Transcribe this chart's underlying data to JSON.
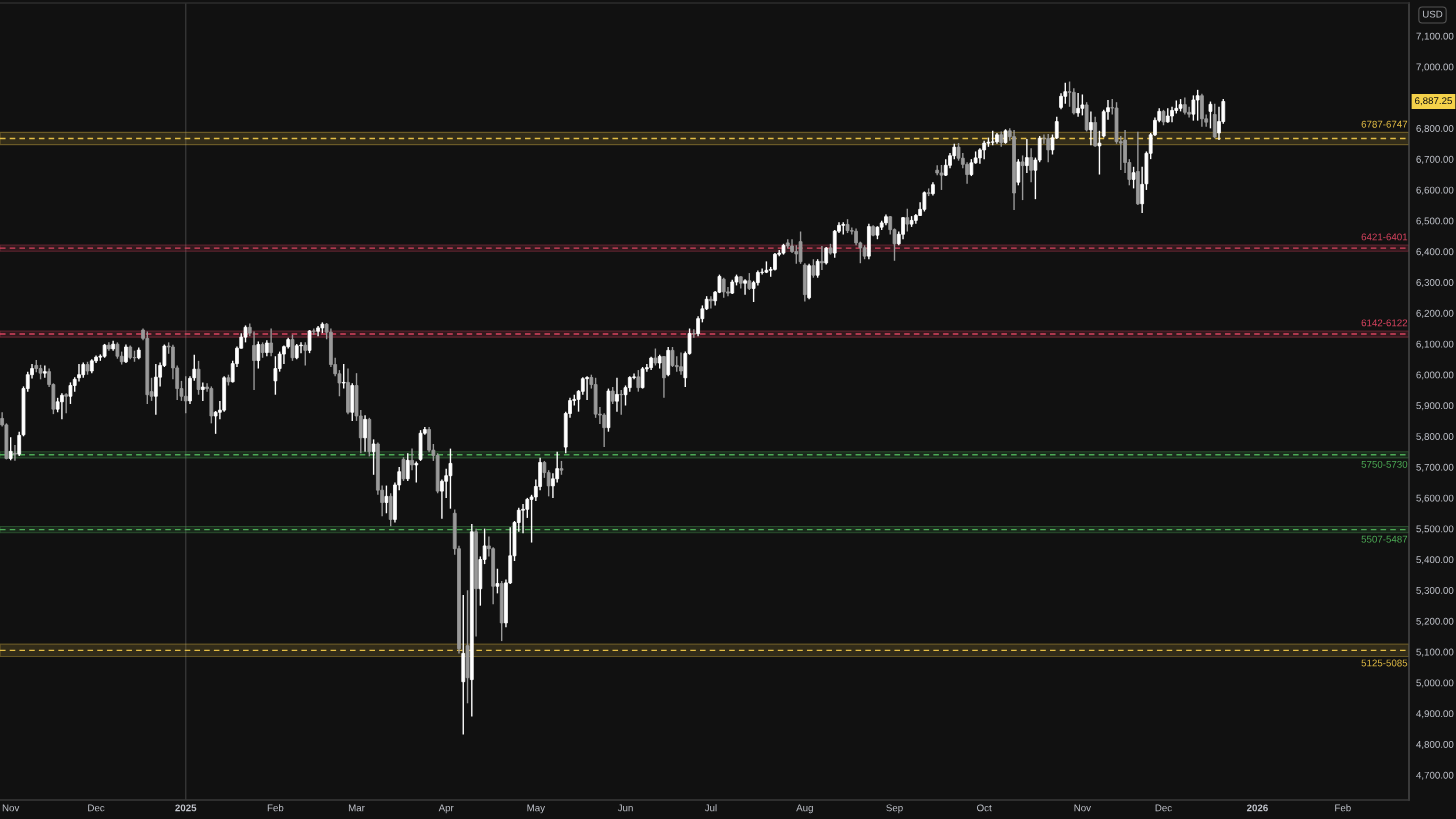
{
  "chart_data": {
    "type": "candlestick",
    "categories": [
      null,
      null,
      "Nov",
      null,
      null,
      null,
      null,
      null,
      null,
      null,
      null,
      null,
      null,
      null,
      null,
      null,
      null,
      null,
      null,
      null,
      null,
      null,
      "Dec",
      null,
      null,
      null,
      null,
      null,
      null,
      null,
      null,
      null,
      null,
      null,
      null,
      null,
      null,
      null,
      null,
      null,
      null,
      null,
      null,
      "2025",
      null,
      null,
      null,
      null,
      null,
      null,
      null,
      null,
      null,
      null,
      null,
      null,
      null,
      null,
      null,
      null,
      null,
      null,
      null,
      null,
      "Feb",
      null,
      null,
      null,
      null,
      null,
      null,
      null,
      null,
      null,
      null,
      null,
      null,
      null,
      null,
      null,
      null,
      null,
      null,
      "Mar",
      null,
      null,
      null,
      null,
      null,
      null,
      null,
      null,
      null,
      null,
      null,
      null,
      null,
      null,
      null,
      null,
      null,
      null,
      null,
      null,
      "Apr",
      null,
      null,
      null,
      null,
      null,
      null,
      null,
      null,
      null,
      null,
      null,
      null,
      null,
      null,
      null,
      null,
      null,
      null,
      null,
      null,
      "May",
      null,
      null,
      null,
      null,
      null,
      null,
      null,
      null,
      null,
      null,
      null,
      null,
      null,
      null,
      null,
      null,
      null,
      null,
      null,
      null,
      "Jun",
      null,
      null,
      null,
      null,
      null,
      null,
      null,
      null,
      null,
      null,
      null,
      null,
      null,
      null,
      null,
      null,
      null,
      null,
      null,
      "Jul",
      null,
      null,
      null,
      null,
      null,
      null,
      null,
      null,
      null,
      null,
      null,
      null,
      null,
      null,
      null,
      null,
      null,
      null,
      null,
      null,
      null,
      "Aug",
      null,
      null,
      null,
      null,
      null,
      null,
      null,
      null,
      null,
      null,
      null,
      null,
      null,
      null,
      null,
      null,
      null,
      null,
      null,
      null,
      "Sep",
      null,
      null,
      null,
      null,
      null,
      null,
      null,
      null,
      null,
      null,
      null,
      null,
      null,
      null,
      null,
      null,
      null,
      null,
      null,
      null,
      "Oct",
      null,
      null,
      null,
      null,
      null,
      null,
      null,
      null,
      null,
      null,
      null,
      null,
      null,
      null,
      null,
      null,
      null,
      null,
      null,
      null,
      null,
      null,
      "Nov",
      null,
      null,
      null,
      null,
      null,
      null,
      null,
      null,
      null,
      null,
      null,
      null,
      null,
      null,
      null,
      null,
      null,
      null,
      "Dec",
      null,
      null,
      null,
      null,
      null,
      null,
      null,
      null,
      null,
      null,
      null,
      null,
      null,
      null,
      null,
      null,
      null,
      null,
      null,
      null,
      null,
      "2026",
      null,
      null,
      null,
      null,
      null,
      null,
      null,
      null,
      null,
      null,
      null,
      null,
      null,
      null,
      null,
      null,
      null,
      null,
      null,
      "Feb",
      null,
      null,
      null,
      null,
      null,
      null,
      null,
      null,
      null,
      null,
      null,
      null,
      null,
      null,
      null
    ],
    "ohlc": [
      [
        5858,
        5878,
        5832,
        5837
      ],
      [
        5837,
        5842,
        5725,
        5728
      ],
      [
        5728,
        5797,
        5722,
        5751
      ],
      [
        5745,
        5772,
        5721,
        5742
      ],
      [
        5742,
        5815,
        5736,
        5803
      ],
      [
        5805,
        5962,
        5800,
        5955
      ],
      [
        5955,
        6010,
        5945,
        6000
      ],
      [
        6000,
        6035,
        5988,
        6020
      ],
      [
        6030,
        6048,
        6008,
        6020
      ],
      [
        6020,
        6032,
        5985,
        6005
      ],
      [
        6005,
        6030,
        5990,
        6010
      ],
      [
        6010,
        6020,
        5960,
        5968
      ],
      [
        5968,
        5972,
        5872,
        5888
      ],
      [
        5888,
        5925,
        5878,
        5912
      ],
      [
        5912,
        5940,
        5855,
        5933
      ],
      [
        5935,
        5940,
        5875,
        5930
      ],
      [
        5930,
        5975,
        5905,
        5965
      ],
      [
        5965,
        5992,
        5945,
        5985
      ],
      [
        5990,
        6035,
        5978,
        6000
      ],
      [
        6000,
        6040,
        5990,
        6033
      ],
      [
        6033,
        6042,
        6000,
        6012
      ],
      [
        6012,
        6050,
        6005,
        6045
      ],
      [
        6045,
        6062,
        6038,
        6057
      ],
      [
        6057,
        6066,
        6045,
        6060
      ],
      [
        6060,
        6100,
        6055,
        6096
      ],
      [
        6096,
        6105,
        6078,
        6084
      ],
      [
        6084,
        6110,
        6078,
        6099
      ],
      [
        6099,
        6105,
        6052,
        6060
      ],
      [
        6060,
        6075,
        6033,
        6042
      ],
      [
        6042,
        6098,
        6038,
        6090
      ],
      [
        6090,
        6095,
        6050,
        6056
      ],
      [
        6056,
        6078,
        6042,
        6055
      ],
      [
        6055,
        6088,
        6050,
        6080
      ],
      [
        6145,
        6150,
        6112,
        6118
      ],
      [
        6118,
        6140,
        5905,
        5935
      ],
      [
        5945,
        5990,
        5915,
        5930
      ],
      [
        5930,
        6035,
        5870,
        5992
      ],
      [
        5992,
        6040,
        5962,
        6030
      ],
      [
        6030,
        6098,
        6025,
        6093
      ],
      [
        6093,
        6105,
        6068,
        6090
      ],
      [
        6090,
        6097,
        5985,
        6022
      ],
      [
        6022,
        6030,
        5918,
        5955
      ],
      [
        5955,
        5980,
        5915,
        5930
      ],
      [
        5930,
        5995,
        5875,
        5915
      ],
      [
        5915,
        5995,
        5905,
        5988
      ],
      [
        5990,
        6065,
        5980,
        6018
      ],
      [
        6018,
        6045,
        5935,
        5952
      ],
      [
        5952,
        5975,
        5915,
        5960
      ],
      [
        5960,
        5972,
        5945,
        5955
      ],
      [
        5955,
        5962,
        5842,
        5866
      ],
      [
        5866,
        5882,
        5808,
        5878
      ],
      [
        5878,
        5915,
        5855,
        5885
      ],
      [
        5885,
        5995,
        5880,
        5990
      ],
      [
        5990,
        6000,
        5965,
        5977
      ],
      [
        5977,
        6045,
        5975,
        6036
      ],
      [
        6036,
        6092,
        6025,
        6086
      ],
      [
        6086,
        6135,
        6085,
        6122
      ],
      [
        6122,
        6160,
        6105,
        6154
      ],
      [
        6154,
        6166,
        6125,
        6135
      ],
      [
        6095,
        6140,
        5950,
        6046
      ],
      [
        6046,
        6108,
        6020,
        6098
      ],
      [
        6098,
        6105,
        6055,
        6072
      ],
      [
        6072,
        6112,
        6060,
        6103
      ],
      [
        6103,
        6150,
        6060,
        6072
      ],
      [
        5980,
        6060,
        5935,
        6020
      ],
      [
        6020,
        6075,
        6010,
        6067
      ],
      [
        6067,
        6095,
        6035,
        6091
      ],
      [
        6091,
        6120,
        6085,
        6114
      ],
      [
        6114,
        6130,
        6045,
        6055
      ],
      [
        6055,
        6100,
        6050,
        6094
      ],
      [
        6094,
        6105,
        6070,
        6096
      ],
      [
        6096,
        6105,
        6030,
        6079
      ],
      [
        6079,
        6145,
        6070,
        6142
      ],
      [
        6142,
        6150,
        6130,
        6141
      ],
      [
        6141,
        6158,
        6125,
        6152
      ],
      [
        6152,
        6170,
        6135,
        6164
      ],
      [
        6164,
        6168,
        6115,
        6138
      ],
      [
        6138,
        6150,
        6025,
        6033
      ],
      [
        6033,
        6055,
        5995,
        6003
      ],
      [
        6003,
        6015,
        5930,
        5973
      ],
      [
        5973,
        6035,
        5955,
        5975
      ],
      [
        5975,
        6020,
        5872,
        5878
      ],
      [
        5878,
        5972,
        5850,
        5965
      ],
      [
        5965,
        6005,
        5850,
        5866
      ],
      [
        5866,
        5885,
        5745,
        5795
      ],
      [
        5795,
        5868,
        5750,
        5855
      ],
      [
        5855,
        5860,
        5735,
        5750
      ],
      [
        5750,
        5790,
        5675,
        5775
      ],
      [
        5775,
        5780,
        5610,
        5625
      ],
      [
        5625,
        5640,
        5540,
        5585
      ],
      [
        5585,
        5640,
        5550,
        5605
      ],
      [
        5605,
        5615,
        5508,
        5530
      ],
      [
        5530,
        5650,
        5520,
        5642
      ],
      [
        5642,
        5700,
        5625,
        5685
      ],
      [
        5725,
        5732,
        5655,
        5662
      ],
      [
        5662,
        5745,
        5655,
        5722
      ],
      [
        5722,
        5760,
        5690,
        5707
      ],
      [
        5707,
        5718,
        5650,
        5712
      ],
      [
        5725,
        5820,
        5720,
        5810
      ],
      [
        5810,
        5830,
        5805,
        5822
      ],
      [
        5822,
        5830,
        5748,
        5755
      ],
      [
        5755,
        5775,
        5720,
        5738
      ],
      [
        5738,
        5745,
        5615,
        5622
      ],
      [
        5622,
        5660,
        5532,
        5654
      ],
      [
        5654,
        5695,
        5600,
        5672
      ],
      [
        5672,
        5760,
        5565,
        5712
      ],
      [
        5550,
        5562,
        5415,
        5435
      ],
      [
        5435,
        5445,
        5095,
        5110
      ],
      [
        5003,
        5285,
        4832,
        5095
      ],
      [
        5120,
        5300,
        4933,
        5016
      ],
      [
        5010,
        5515,
        4890,
        5490
      ],
      [
        5490,
        5500,
        5150,
        5305
      ],
      [
        5305,
        5410,
        5250,
        5400
      ],
      [
        5400,
        5500,
        5385,
        5444
      ],
      [
        5444,
        5475,
        5410,
        5435
      ],
      [
        5435,
        5440,
        5255,
        5313
      ],
      [
        5313,
        5370,
        5290,
        5322
      ],
      [
        5322,
        5330,
        5135,
        5194
      ],
      [
        5194,
        5335,
        5180,
        5324
      ],
      [
        5324,
        5505,
        5320,
        5412
      ],
      [
        5412,
        5525,
        5395,
        5520
      ],
      [
        5520,
        5568,
        5490,
        5560
      ],
      [
        5560,
        5580,
        5485,
        5563
      ],
      [
        5563,
        5600,
        5535,
        5595
      ],
      [
        5595,
        5610,
        5455,
        5603
      ],
      [
        5603,
        5660,
        5590,
        5637
      ],
      [
        5637,
        5730,
        5625,
        5715
      ],
      [
        5715,
        5720,
        5665,
        5682
      ],
      [
        5682,
        5690,
        5605,
        5639
      ],
      [
        5639,
        5680,
        5600,
        5662
      ],
      [
        5662,
        5750,
        5650,
        5695
      ],
      [
        5695,
        5720,
        5675,
        5690
      ],
      [
        5765,
        5880,
        5745,
        5874
      ],
      [
        5874,
        5925,
        5860,
        5916
      ],
      [
        5916,
        5935,
        5900,
        5920
      ],
      [
        5920,
        5950,
        5880,
        5946
      ],
      [
        5946,
        5992,
        5935,
        5987
      ],
      [
        5987,
        5995,
        5918,
        5991
      ],
      [
        5991,
        6000,
        5955,
        5968
      ],
      [
        5968,
        5990,
        5860,
        5872
      ],
      [
        5872,
        5895,
        5840,
        5869
      ],
      [
        5869,
        5875,
        5765,
        5828
      ],
      [
        5828,
        5955,
        5815,
        5947
      ],
      [
        5947,
        5960,
        5905,
        5914
      ],
      [
        5914,
        5990,
        5880,
        5936
      ],
      [
        5936,
        5950,
        5870,
        5935
      ],
      [
        5935,
        5965,
        5900,
        5958
      ],
      [
        5958,
        5995,
        5945,
        5991
      ],
      [
        5991,
        6004,
        5985,
        5993
      ],
      [
        5993,
        6015,
        5945,
        5958
      ],
      [
        5958,
        6025,
        5955,
        6019
      ],
      [
        6019,
        6035,
        6010,
        6023
      ],
      [
        6023,
        6058,
        6015,
        6054
      ],
      [
        6054,
        6085,
        6030,
        6038
      ],
      [
        6038,
        6065,
        6020,
        6059
      ],
      [
        6059,
        6060,
        5925,
        5990
      ],
      [
        6000,
        6090,
        5995,
        6079
      ],
      [
        6079,
        6090,
        6025,
        6030
      ],
      [
        6030,
        6060,
        6010,
        6026
      ],
      [
        6026,
        6072,
        6000,
        6012
      ],
      [
        5990,
        6075,
        5960,
        6069
      ],
      [
        6069,
        6150,
        6065,
        6134
      ],
      [
        6134,
        6148,
        6120,
        6133
      ],
      [
        6133,
        6190,
        6125,
        6182
      ],
      [
        6182,
        6225,
        6170,
        6214
      ],
      [
        6214,
        6255,
        6210,
        6245
      ],
      [
        6245,
        6255,
        6215,
        6240
      ],
      [
        6240,
        6272,
        6225,
        6268
      ],
      [
        6268,
        6325,
        6265,
        6319
      ],
      [
        6310,
        6315,
        6250,
        6269
      ],
      [
        6269,
        6285,
        6255,
        6265
      ],
      [
        6265,
        6308,
        6262,
        6301
      ],
      [
        6301,
        6325,
        6290,
        6318
      ],
      [
        6318,
        6320,
        6280,
        6297
      ],
      [
        6297,
        6310,
        6260,
        6305
      ],
      [
        6305,
        6330,
        6275,
        6280
      ],
      [
        6280,
        6305,
        6236,
        6299
      ],
      [
        6299,
        6338,
        6290,
        6332
      ],
      [
        6332,
        6345,
        6325,
        6333
      ],
      [
        6333,
        6368,
        6330,
        6339
      ],
      [
        6339,
        6350,
        6318,
        6342
      ],
      [
        6342,
        6395,
        6338,
        6391
      ],
      [
        6391,
        6405,
        6385,
        6395
      ],
      [
        6395,
        6425,
        6390,
        6420
      ],
      [
        6428,
        6440,
        6410,
        6418
      ],
      [
        6418,
        6440,
        6395,
        6400
      ],
      [
        6400,
        6420,
        6360,
        6392
      ],
      [
        6432,
        6465,
        6360,
        6367
      ],
      [
        6356,
        6362,
        6238,
        6260
      ],
      [
        6250,
        6360,
        6245,
        6354
      ],
      [
        6354,
        6375,
        6315,
        6323
      ],
      [
        6323,
        6375,
        6315,
        6368
      ],
      [
        6368,
        6418,
        6340,
        6363
      ],
      [
        6363,
        6415,
        6358,
        6411
      ],
      [
        6411,
        6425,
        6390,
        6395
      ],
      [
        6395,
        6470,
        6380,
        6466
      ],
      [
        6466,
        6495,
        6460,
        6485
      ],
      [
        6485,
        6495,
        6455,
        6488
      ],
      [
        6488,
        6505,
        6460,
        6468
      ],
      [
        6468,
        6478,
        6455,
        6466
      ],
      [
        6466,
        6475,
        6420,
        6428
      ],
      [
        6428,
        6432,
        6362,
        6412
      ],
      [
        6412,
        6420,
        6375,
        6385
      ],
      [
        6385,
        6490,
        6375,
        6481
      ],
      [
        6481,
        6485,
        6450,
        6453
      ],
      [
        6453,
        6482,
        6440,
        6479
      ],
      [
        6479,
        6500,
        6470,
        6493
      ],
      [
        6493,
        6520,
        6485,
        6513
      ],
      [
        6513,
        6515,
        6455,
        6471
      ],
      [
        6471,
        6475,
        6370,
        6425
      ],
      [
        6425,
        6465,
        6420,
        6456
      ],
      [
        6456,
        6512,
        6440,
        6510
      ],
      [
        6510,
        6539,
        6465,
        6489
      ],
      [
        6489,
        6515,
        6480,
        6501
      ],
      [
        6501,
        6522,
        6490,
        6517
      ],
      [
        6517,
        6560,
        6515,
        6537
      ],
      [
        6537,
        6595,
        6530,
        6591
      ],
      [
        6591,
        6605,
        6580,
        6588
      ],
      [
        6588,
        6625,
        6582,
        6617
      ],
      [
        6664,
        6680,
        6648,
        6655
      ],
      [
        6655,
        6681,
        6600,
        6648
      ],
      [
        6648,
        6700,
        6645,
        6680
      ],
      [
        6680,
        6720,
        6670,
        6711
      ],
      [
        6711,
        6750,
        6700,
        6739
      ],
      [
        6739,
        6752,
        6695,
        6703
      ],
      [
        6703,
        6720,
        6670,
        6683
      ],
      [
        6683,
        6690,
        6620,
        6650
      ],
      [
        6650,
        6700,
        6645,
        6688
      ],
      [
        6688,
        6725,
        6685,
        6704
      ],
      [
        6704,
        6735,
        6685,
        6730
      ],
      [
        6730,
        6760,
        6700,
        6752
      ],
      [
        6752,
        6770,
        6740,
        6755
      ],
      [
        6755,
        6792,
        6745,
        6756
      ],
      [
        6756,
        6785,
        6750,
        6779
      ],
      [
        6779,
        6790,
        6740,
        6754
      ],
      [
        6754,
        6797,
        6750,
        6792
      ],
      [
        6792,
        6800,
        6760,
        6773
      ],
      [
        6773,
        6795,
        6535,
        6590
      ],
      [
        6625,
        6700,
        6615,
        6691
      ],
      [
        6691,
        6712,
        6567,
        6679
      ],
      [
        6679,
        6765,
        6655,
        6705
      ],
      [
        6705,
        6735,
        6625,
        6664
      ],
      [
        6664,
        6705,
        6570,
        6697
      ],
      [
        6697,
        6775,
        6690,
        6768
      ],
      [
        6768,
        6780,
        6750,
        6767
      ],
      [
        6767,
        6782,
        6690,
        6730
      ],
      [
        6730,
        6780,
        6715,
        6769
      ],
      [
        6769,
        6838,
        6765,
        6822
      ],
      [
        6868,
        6914,
        6862,
        6904
      ],
      [
        6904,
        6948,
        6880,
        6919
      ],
      [
        6919,
        6952,
        6870,
        6917
      ],
      [
        6917,
        6930,
        6845,
        6850
      ],
      [
        6850,
        6915,
        6838,
        6865
      ],
      [
        6865,
        6910,
        6842,
        6876
      ],
      [
        6876,
        6885,
        6790,
        6795
      ],
      [
        6795,
        6855,
        6745,
        6819
      ],
      [
        6819,
        6838,
        6740,
        6743
      ],
      [
        6743,
        6792,
        6650,
        6752
      ],
      [
        6775,
        6860,
        6770,
        6854
      ],
      [
        6854,
        6892,
        6828,
        6867
      ],
      [
        6867,
        6895,
        6845,
        6866
      ],
      [
        6866,
        6885,
        6750,
        6757
      ],
      [
        6757,
        6775,
        6665,
        6752
      ],
      [
        6762,
        6795,
        6655,
        6689
      ],
      [
        6689,
        6700,
        6615,
        6634
      ],
      [
        6634,
        6675,
        6605,
        6656
      ],
      [
        6660,
        6789,
        6551,
        6555
      ],
      [
        6555,
        6675,
        6525,
        6618
      ],
      [
        6620,
        6725,
        6600,
        6719
      ],
      [
        6719,
        6785,
        6700,
        6779
      ],
      [
        6779,
        6835,
        6775,
        6826
      ],
      [
        6826,
        6865,
        6820,
        6855
      ],
      [
        6855,
        6860,
        6810,
        6821
      ],
      [
        6821,
        6865,
        6818,
        6840
      ],
      [
        6840,
        6870,
        6820,
        6858
      ],
      [
        6858,
        6890,
        6848,
        6865
      ],
      [
        6865,
        6895,
        6855,
        6877
      ],
      [
        6877,
        6900,
        6845,
        6852
      ],
      [
        6852,
        6870,
        6835,
        6846
      ],
      [
        6846,
        6907,
        6825,
        6892
      ],
      [
        6892,
        6925,
        6825,
        6906
      ],
      [
        6906,
        6912,
        6805,
        6831
      ],
      [
        6831,
        6845,
        6805,
        6820
      ],
      [
        6855,
        6887,
        6800,
        6878
      ],
      [
        6845,
        6880,
        6768,
        6772
      ],
      [
        6785,
        6870,
        6762,
        6822
      ],
      [
        6822,
        6895,
        6815,
        6887.25
      ],
      null,
      null,
      null,
      null,
      null,
      null,
      null,
      null,
      null,
      null,
      null,
      null,
      null,
      null,
      null,
      null,
      null,
      null,
      null,
      null,
      null,
      null,
      null,
      null,
      null,
      null,
      null,
      null,
      null,
      null,
      null,
      null,
      null,
      null,
      null,
      null,
      null,
      null,
      null,
      null,
      null,
      null,
      null
    ],
    "colors": [
      "#9a9a9a",
      "#9a9a9a",
      "#ffffff",
      "#9a9a9a",
      "#ffffff",
      "#ffffff",
      "#ffffff",
      "#ffffff",
      "#9a9a9a",
      "#9a9a9a",
      "#ffffff",
      "#9a9a9a",
      "#9a9a9a",
      "#ffffff",
      "#ffffff",
      "#9a9a9a",
      "#ffffff",
      "#ffffff",
      "#ffffff",
      "#ffffff",
      "#9a9a9a",
      "#ffffff",
      "#ffffff",
      "#ffffff",
      "#ffffff",
      "#9a9a9a",
      "#ffffff",
      "#9a9a9a",
      "#9a9a9a",
      "#ffffff",
      "#9a9a9a",
      "#9a9a9a",
      "#ffffff",
      "#9a9a9a",
      "#9a9a9a",
      "#9a9a9a",
      "#ffffff",
      "#ffffff",
      "#ffffff",
      "#9a9a9a",
      "#9a9a9a",
      "#9a9a9a",
      "#9a9a9a",
      "#9a9a9a",
      "#ffffff",
      "#ffffff",
      "#9a9a9a",
      "#ffffff",
      "#9a9a9a",
      "#9a9a9a",
      "#ffffff",
      "#ffffff",
      "#ffffff",
      "#9a9a9a",
      "#ffffff",
      "#ffffff",
      "#ffffff",
      "#ffffff",
      "#9a9a9a",
      "#9a9a9a",
      "#ffffff",
      "#9a9a9a",
      "#ffffff",
      "#9a9a9a",
      "#ffffff",
      "#ffffff",
      "#ffffff",
      "#ffffff",
      "#9a9a9a",
      "#ffffff",
      "#ffffff",
      "#9a9a9a",
      "#ffffff",
      "#9a9a9a",
      "#ffffff",
      "#ffffff",
      "#9a9a9a",
      "#9a9a9a",
      "#9a9a9a",
      "#9a9a9a",
      "#ffffff",
      "#9a9a9a",
      "#ffffff",
      "#9a9a9a",
      "#9a9a9a",
      "#ffffff",
      "#9a9a9a",
      "#ffffff",
      "#9a9a9a",
      "#9a9a9a",
      "#ffffff",
      "#9a9a9a",
      "#ffffff",
      "#ffffff",
      "#9a9a9a",
      "#ffffff",
      "#9a9a9a",
      "#ffffff",
      "#ffffff",
      "#ffffff",
      "#9a9a9a",
      "#9a9a9a",
      "#9a9a9a",
      "#ffffff",
      "#ffffff",
      "#ffffff",
      "#9a9a9a",
      "#9a9a9a",
      "#ffffff",
      "#9a9a9a",
      "#ffffff",
      "#9a9a9a",
      "#ffffff",
      "#ffffff",
      "#9a9a9a",
      "#9a9a9a",
      "#ffffff",
      "#9a9a9a",
      "#ffffff",
      "#ffffff",
      "#ffffff",
      "#ffffff",
      "#ffffff",
      "#ffffff",
      "#ffffff",
      "#ffffff",
      "#ffffff",
      "#9a9a9a",
      "#9a9a9a",
      "#ffffff",
      "#ffffff",
      "#9a9a9a",
      "#ffffff",
      "#ffffff",
      "#ffffff",
      "#ffffff",
      "#ffffff",
      "#ffffff",
      "#9a9a9a",
      "#9a9a9a",
      "#9a9a9a",
      "#9a9a9a",
      "#ffffff",
      "#9a9a9a",
      "#ffffff",
      "#9a9a9a",
      "#ffffff",
      "#ffffff",
      "#ffffff",
      "#9a9a9a",
      "#ffffff",
      "#ffffff",
      "#ffffff",
      "#9a9a9a",
      "#ffffff",
      "#9a9a9a",
      "#ffffff",
      "#9a9a9a",
      "#9a9a9a",
      "#9a9a9a",
      "#ffffff",
      "#ffffff",
      "#9a9a9a",
      "#ffffff",
      "#ffffff",
      "#ffffff",
      "#9a9a9a",
      "#ffffff",
      "#ffffff",
      "#9a9a9a",
      "#9a9a9a",
      "#ffffff",
      "#ffffff",
      "#9a9a9a",
      "#ffffff",
      "#9a9a9a",
      "#ffffff",
      "#ffffff",
      "#ffffff",
      "#ffffff",
      "#ffffff",
      "#ffffff",
      "#ffffff",
      "#ffffff",
      "#9a9a9a",
      "#9a9a9a",
      "#9a9a9a",
      "#9a9a9a",
      "#9a9a9a",
      "#ffffff",
      "#9a9a9a",
      "#ffffff",
      "#9a9a9a",
      "#ffffff",
      "#9a9a9a",
      "#ffffff",
      "#ffffff",
      "#ffffff",
      "#9a9a9a",
      "#9a9a9a",
      "#9a9a9a",
      "#9a9a9a",
      "#9a9a9a",
      "#ffffff",
      "#9a9a9a",
      "#ffffff",
      "#ffffff",
      "#ffffff",
      "#9a9a9a",
      "#9a9a9a",
      "#ffffff",
      "#ffffff",
      "#9a9a9a",
      "#ffffff",
      "#ffffff",
      "#ffffff",
      "#ffffff",
      "#9a9a9a",
      "#ffffff",
      "#9a9a9a",
      "#9a9a9a",
      "#ffffff",
      "#ffffff",
      "#ffffff",
      "#9a9a9a",
      "#9a9a9a",
      "#9a9a9a",
      "#ffffff",
      "#ffffff",
      "#ffffff",
      "#ffffff",
      "#ffffff",
      "#ffffff",
      "#ffffff",
      "#9a9a9a",
      "#ffffff",
      "#9a9a9a",
      "#9a9a9a",
      "#ffffff",
      "#9a9a9a",
      "#ffffff",
      "#9a9a9a",
      "#ffffff",
      "#ffffff",
      "#9a9a9a",
      "#9a9a9a",
      "#ffffff",
      "#ffffff",
      "#ffffff",
      "#ffffff",
      "#9a9a9a",
      "#9a9a9a",
      "#ffffff",
      "#ffffff",
      "#9a9a9a",
      "#ffffff",
      "#9a9a9a",
      "#ffffff",
      "#ffffff",
      "#ffffff",
      "#9a9a9a",
      "#9a9a9a",
      "#9a9a9a",
      "#9a9a9a",
      "#9a9a9a",
      "#ffffff",
      "#9a9a9a",
      "#ffffff",
      "#ffffff",
      "#ffffff",
      "#ffffff",
      "#ffffff",
      "#9a9a9a",
      "#ffffff",
      "#ffffff",
      "#ffffff",
      "#ffffff",
      "#9a9a9a",
      "#9a9a9a",
      "#ffffff",
      "#ffffff",
      "#9a9a9a",
      "#9a9a9a",
      "#ffffff",
      "#9a9a9a",
      "#ffffff",
      "#ffffff",
      null,
      null,
      null,
      null,
      null,
      null,
      null,
      null,
      null,
      null,
      null,
      null,
      null,
      null,
      null,
      null,
      null,
      null,
      null,
      null,
      null,
      null,
      null,
      null,
      null,
      null,
      null,
      null,
      null,
      null,
      null,
      null,
      null,
      null,
      null,
      null,
      null,
      null,
      null,
      null,
      null,
      null,
      null
    ],
    "ylim": [
      4619,
      7207
    ],
    "yticks": [
      {
        "value": 4700,
        "label": "4,700.00"
      },
      {
        "value": 4800,
        "label": "4,800.00"
      },
      {
        "value": 4900,
        "label": "4,900.00"
      },
      {
        "value": 5000,
        "label": "5,000.00"
      },
      {
        "value": 5100,
        "label": "5,100.00"
      },
      {
        "value": 5200,
        "label": "5,200.00"
      },
      {
        "value": 5300,
        "label": "5,300.00"
      },
      {
        "value": 5400,
        "label": "5,400.00"
      },
      {
        "value": 5500,
        "label": "5,500.00"
      },
      {
        "value": 5600,
        "label": "5,600.00"
      },
      {
        "value": 5700,
        "label": "5,700.00"
      },
      {
        "value": 5800,
        "label": "5,800.00"
      },
      {
        "value": 5900,
        "label": "5,900.00"
      },
      {
        "value": 6000,
        "label": "6,000.00"
      },
      {
        "value": 6100,
        "label": "6,100.00"
      },
      {
        "value": 6200,
        "label": "6,200.00"
      },
      {
        "value": 6300,
        "label": "6,300.00"
      },
      {
        "value": 6400,
        "label": "6,400.00"
      },
      {
        "value": 6500,
        "label": "6,500.00"
      },
      {
        "value": 6600,
        "label": "6,600.00"
      },
      {
        "value": 6700,
        "label": "6,700.00"
      },
      {
        "value": 6800,
        "label": "6,800.00"
      },
      {
        "value": 7000,
        "label": "7,000.00"
      },
      {
        "value": 7100,
        "label": "7,100.00"
      }
    ],
    "bands": [
      {
        "axis": "y",
        "from": 6747,
        "to": 6787,
        "label": "6787-6747",
        "color": "#e3bd45"
      },
      {
        "axis": "y",
        "from": 6401,
        "to": 6421,
        "label": "6421-6401",
        "color": "#d8435f"
      },
      {
        "axis": "y",
        "from": 6122,
        "to": 6142,
        "label": "6142-6122",
        "color": "#d8435f"
      },
      {
        "axis": "y",
        "from": 5730,
        "to": 5750,
        "label": "5750-5730",
        "color": "#4caa55"
      },
      {
        "axis": "y",
        "from": 5487,
        "to": 5507,
        "label": "5507-5487",
        "color": "#4caa55"
      },
      {
        "axis": "y",
        "from": 5085,
        "to": 5125,
        "label": "5125-5085",
        "color": "#e3bd45"
      }
    ],
    "ref_lines": [
      {
        "axis": "y",
        "value": 6767,
        "color": "#e3bd45",
        "line_style": "dashed"
      },
      {
        "axis": "y",
        "value": 6411,
        "color": "#d8435f",
        "line_style": "dashed"
      },
      {
        "axis": "y",
        "value": 6132,
        "color": "#d8435f",
        "line_style": "dashed"
      },
      {
        "axis": "y",
        "value": 5740,
        "color": "#4caa55",
        "line_style": "dashed"
      },
      {
        "axis": "y",
        "value": 5497,
        "color": "#4caa55",
        "line_style": "dashed"
      },
      {
        "axis": "y",
        "value": 5105,
        "color": "#e3bd45",
        "line_style": "dashed"
      },
      {
        "axis": "x",
        "value": "2025",
        "color": "#363636",
        "line_style": "solid"
      }
    ],
    "annotations": [
      "USD",
      {
        "text": "6,887.25",
        "y": 6887.25
      }
    ]
  }
}
